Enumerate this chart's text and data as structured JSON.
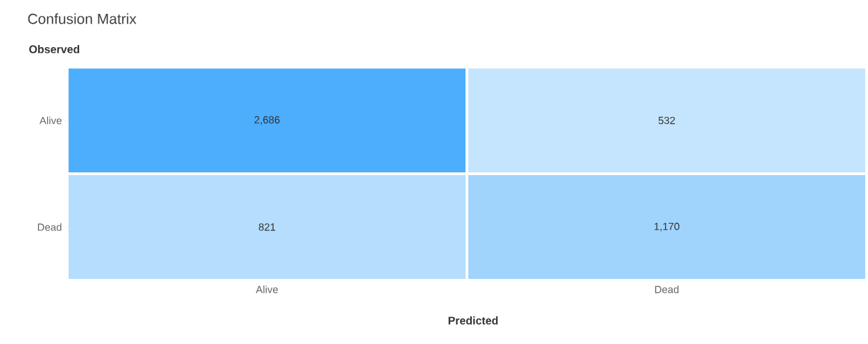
{
  "chart_data": {
    "type": "heatmap",
    "title": "Confusion Matrix",
    "xlabel": "Predicted",
    "ylabel": "Observed",
    "categories": [
      "Alive",
      "Dead"
    ],
    "y_categories": [
      "Alive",
      "Dead"
    ],
    "cells": [
      [
        2686,
        532
      ],
      [
        821,
        1170
      ]
    ],
    "cell_labels": [
      [
        "2,686",
        "532"
      ],
      [
        "821",
        "1,170"
      ]
    ]
  }
}
